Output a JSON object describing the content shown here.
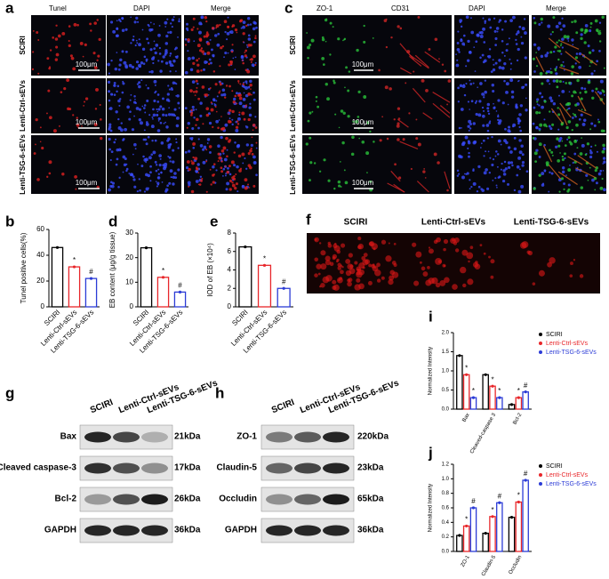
{
  "panels": {
    "a": {
      "label": "a",
      "columns": [
        "Tunel",
        "DAPI",
        "Merge"
      ],
      "rows": [
        "SCIRI",
        "Lenti-Ctrl-sEVs",
        "Lenti-TSG-6-sEVs"
      ],
      "scale_bar": "100μm"
    },
    "c": {
      "label": "c",
      "columns": [
        "ZO-1",
        "CD31",
        "DAPI",
        "Merge"
      ],
      "rows": [
        "SCIRI",
        "Lenti-Ctrl-sEVs",
        "Lenti-TSG-6-sEVs"
      ],
      "scale_bar": "100μm"
    },
    "f": {
      "label": "f",
      "columns": [
        "SCIRI",
        "Lenti-Ctrl-sEVs",
        "Lenti-TSG-6-sEVs"
      ]
    },
    "g": {
      "label": "g",
      "columns": [
        "SCIRI",
        "Lenti-Ctrl-sEVs",
        "Lenti-TSG-6-sEVs"
      ],
      "rows": [
        "Bax",
        "Cleaved caspase-3",
        "Bcl-2",
        "GAPDH"
      ],
      "sizes": [
        "21kDa",
        "17kDa",
        "26kDa",
        "36kDa"
      ]
    },
    "h": {
      "label": "h",
      "columns": [
        "SCIRI",
        "Lenti-Ctrl-sEVs",
        "Lenti-TSG-6-sEVs"
      ],
      "rows": [
        "ZO-1",
        "Claudin-5",
        "Occludin",
        "GAPDH"
      ],
      "sizes": [
        "220kDa",
        "23kDa",
        "65kDa",
        "36kDa"
      ]
    }
  },
  "chart_data": [
    {
      "type": "bar",
      "panel_label": "b",
      "ylabel": "Tunel positive cells(%)",
      "categories": [
        "SCIRI",
        "Lenti-Ctrl-sEVs",
        "Lenti-TSG-6-sEVs"
      ],
      "values": [
        46,
        31,
        22
      ],
      "colors": [
        "#000000",
        "#e8262a",
        "#2b3bd6"
      ],
      "annotations": [
        null,
        "*",
        "#"
      ],
      "ylim": [
        0,
        60
      ],
      "yticks": [
        0,
        20,
        40,
        60
      ]
    },
    {
      "type": "bar",
      "panel_label": "d",
      "ylabel": "EB content (μg/g tissue)",
      "categories": [
        "SCIRI",
        "Lenti-Ctrl-sEVs",
        "Lenti-TSG-6-sEVs"
      ],
      "values": [
        24,
        12,
        6
      ],
      "colors": [
        "#000000",
        "#e8262a",
        "#2b3bd6"
      ],
      "annotations": [
        null,
        "*",
        "#"
      ],
      "ylim": [
        0,
        30
      ],
      "yticks": [
        0,
        10,
        20,
        30
      ]
    },
    {
      "type": "bar",
      "panel_label": "e",
      "ylabel": "IOD of EB (×10⁴)",
      "categories": [
        "SCIRI",
        "Lenti-Ctrl-sEVs",
        "Lenti-TSG-6-sEVs"
      ],
      "values": [
        6.5,
        4.5,
        2
      ],
      "colors": [
        "#000000",
        "#e8262a",
        "#2b3bd6"
      ],
      "annotations": [
        null,
        "*",
        "#"
      ],
      "ylim": [
        0,
        8
      ],
      "yticks": [
        0,
        2,
        4,
        6,
        8
      ]
    },
    {
      "type": "bar",
      "panel_label": "i",
      "ylabel": "Normalized Intensity",
      "categories": [
        "Bax",
        "Cleaved-caspase 3",
        "Bcl-2"
      ],
      "series": [
        {
          "name": "SCIRI",
          "color": "#000000",
          "values": [
            1.4,
            0.9,
            0.12
          ]
        },
        {
          "name": "Lenti-Ctrl-sEVs",
          "color": "#e8262a",
          "values": [
            0.9,
            0.6,
            0.3
          ],
          "annotations": [
            "*",
            "*",
            "*"
          ]
        },
        {
          "name": "Lenti-TSG-6-sEVs",
          "color": "#2b3bd6",
          "values": [
            0.3,
            0.3,
            0.45
          ],
          "annotations": [
            "*",
            "*",
            "#"
          ]
        }
      ],
      "ylim": [
        0,
        2
      ],
      "yticks": [
        {
          "value": 0,
          "label": "0.0"
        },
        {
          "value": 0.5,
          "label": "0.5"
        },
        {
          "value": 1,
          "label": "1.0"
        },
        {
          "value": 1.5,
          "label": "1.5"
        },
        {
          "value": 2,
          "label": "2.0"
        }
      ],
      "legend": "upper right"
    },
    {
      "type": "bar",
      "panel_label": "j",
      "ylabel": "Normalized Intensity",
      "categories": [
        "ZO-1",
        "Claudin-5",
        "Occludin"
      ],
      "series": [
        {
          "name": "SCIRI",
          "color": "#000000",
          "values": [
            0.22,
            0.25,
            0.47
          ]
        },
        {
          "name": "Lenti-Ctrl-sEVs",
          "color": "#e8262a",
          "values": [
            0.35,
            0.48,
            0.68
          ],
          "annotations": [
            "*",
            "*",
            "*"
          ]
        },
        {
          "name": "Lenti-TSG-6-sEVs",
          "color": "#2b3bd6",
          "values": [
            0.6,
            0.67,
            0.98
          ],
          "annotations": [
            "#",
            "#",
            "#"
          ]
        }
      ],
      "ylim": [
        0,
        1.2
      ],
      "yticks": [
        {
          "value": 0,
          "label": "0.0"
        },
        {
          "value": 0.2,
          "label": "0.2"
        },
        {
          "value": 0.4,
          "label": "0.4"
        },
        {
          "value": 0.6,
          "label": "0.6"
        },
        {
          "value": 0.8,
          "label": "0.8"
        },
        {
          "value": 1,
          "label": "1.0"
        },
        {
          "value": 1.2,
          "label": "1.2"
        }
      ],
      "legend": "upper right"
    }
  ]
}
